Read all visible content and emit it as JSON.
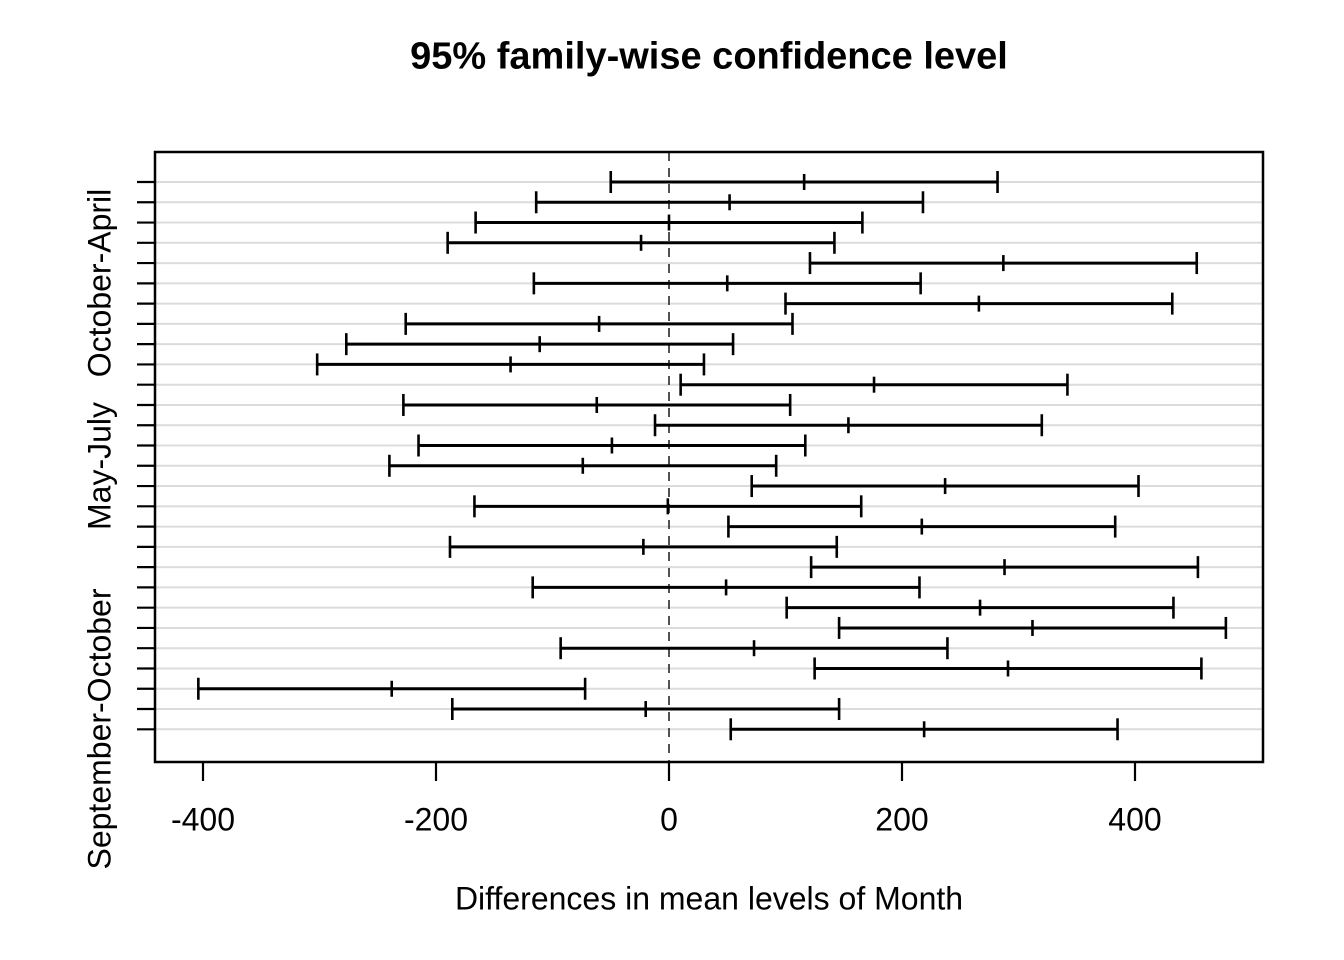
{
  "chart_data": {
    "type": "scatter",
    "subtype": "horizontal-confidence-intervals-tukey-hsd",
    "title": "95% family-wise confidence level",
    "xlabel": "Differences in mean levels of Month",
    "x_ticks": [
      -400,
      -200,
      0,
      200,
      400
    ],
    "xlim": [
      -441,
      510
    ],
    "zero_reference_line": 0,
    "grid": "light horizontal gridline at each comparison row",
    "legend_position": "none",
    "n_rows": 28,
    "y_axis_labels": [
      {
        "row": 6,
        "text": "October-April"
      },
      {
        "row": 15,
        "text": "May-July"
      },
      {
        "row": 28,
        "text": "September-October"
      }
    ],
    "rows": [
      {
        "lwr": -50,
        "diff": 116,
        "upr": 282
      },
      {
        "lwr": -114,
        "diff": 52,
        "upr": 218
      },
      {
        "lwr": -166,
        "diff": 0,
        "upr": 166
      },
      {
        "lwr": -190,
        "diff": -24,
        "upr": 142
      },
      {
        "lwr": 121,
        "diff": 287,
        "upr": 453
      },
      {
        "lwr": -116,
        "diff": 50,
        "upr": 216
      },
      {
        "lwr": 100,
        "diff": 266,
        "upr": 432
      },
      {
        "lwr": -226,
        "diff": -60,
        "upr": 106
      },
      {
        "lwr": -277,
        "diff": -111,
        "upr": 55
      },
      {
        "lwr": -302,
        "diff": -136,
        "upr": 30
      },
      {
        "lwr": 10,
        "diff": 176,
        "upr": 342
      },
      {
        "lwr": -228,
        "diff": -62,
        "upr": 104
      },
      {
        "lwr": -12,
        "diff": 154,
        "upr": 320
      },
      {
        "lwr": -215,
        "diff": -49,
        "upr": 117
      },
      {
        "lwr": -240,
        "diff": -74,
        "upr": 92
      },
      {
        "lwr": 71,
        "diff": 237,
        "upr": 403
      },
      {
        "lwr": -167,
        "diff": -1,
        "upr": 165
      },
      {
        "lwr": 51,
        "diff": 217,
        "upr": 383
      },
      {
        "lwr": -188,
        "diff": -22,
        "upr": 144
      },
      {
        "lwr": 122,
        "diff": 288,
        "upr": 454
      },
      {
        "lwr": -117,
        "diff": 49,
        "upr": 215
      },
      {
        "lwr": 101,
        "diff": 267,
        "upr": 433
      },
      {
        "lwr": 146,
        "diff": 312,
        "upr": 478
      },
      {
        "lwr": -93,
        "diff": 73,
        "upr": 239
      },
      {
        "lwr": 125,
        "diff": 291,
        "upr": 457
      },
      {
        "lwr": -404,
        "diff": -238,
        "upr": -72
      },
      {
        "lwr": -186,
        "diff": -20,
        "upr": 146
      },
      {
        "lwr": 53,
        "diff": 219,
        "upr": 385
      }
    ],
    "colors": {
      "interval": "#000000",
      "frame": "#000000",
      "gridline": "#dcdcdc",
      "zero_line": "#404040",
      "text": "#000000",
      "background": "#ffffff"
    }
  }
}
